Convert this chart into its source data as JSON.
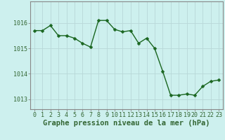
{
  "x": [
    0,
    1,
    2,
    3,
    4,
    5,
    6,
    7,
    8,
    9,
    10,
    11,
    12,
    13,
    14,
    15,
    16,
    17,
    18,
    19,
    20,
    21,
    22,
    23
  ],
  "y": [
    1015.7,
    1015.7,
    1015.9,
    1015.5,
    1015.5,
    1015.4,
    1015.2,
    1015.05,
    1016.1,
    1016.1,
    1015.75,
    1015.65,
    1015.7,
    1015.2,
    1015.4,
    1015.0,
    1014.1,
    1013.15,
    1013.15,
    1013.2,
    1013.15,
    1013.5,
    1013.7,
    1013.75
  ],
  "line_color": "#1a6620",
  "marker_color": "#1a6620",
  "bg_color": "#cdf0ee",
  "grid_color": "#b8d8d8",
  "axis_color": "#336633",
  "spine_color": "#888888",
  "xlabel": "Graphe pression niveau de la mer (hPa)",
  "ylim_min": 1012.6,
  "ylim_max": 1016.85,
  "yticks": [
    1013,
    1014,
    1015,
    1016
  ],
  "xticks": [
    0,
    1,
    2,
    3,
    4,
    5,
    6,
    7,
    8,
    9,
    10,
    11,
    12,
    13,
    14,
    15,
    16,
    17,
    18,
    19,
    20,
    21,
    22,
    23
  ],
  "xlabel_fontsize": 7.5,
  "tick_fontsize": 6,
  "line_width": 1.0,
  "marker_size": 2.5
}
